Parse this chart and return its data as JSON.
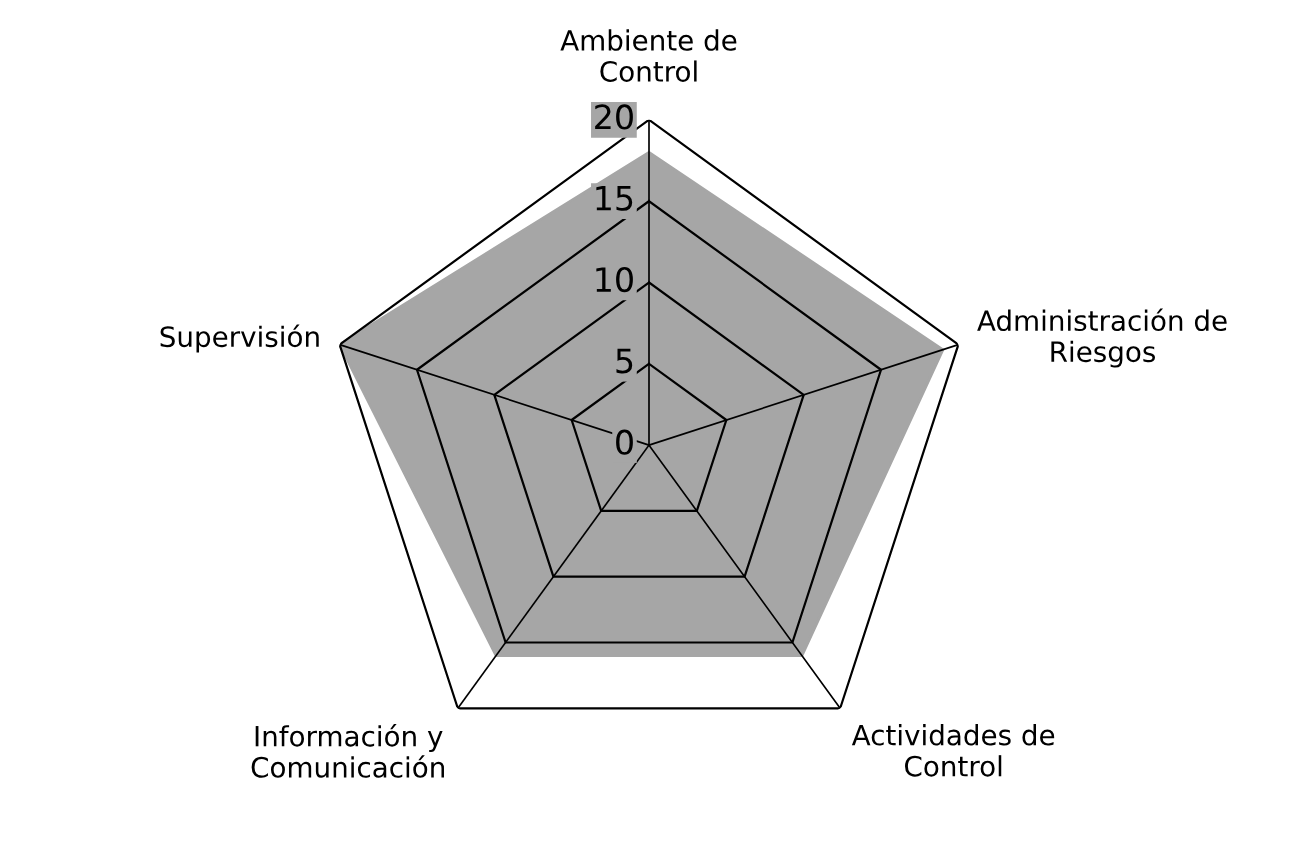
{
  "chart_data": {
    "type": "radar",
    "categories": [
      "Ambiente de\nControl",
      "Administración de\nRiesgos",
      "Actividades de\nControl",
      "Información y\nComunicación",
      "Supervisión"
    ],
    "series": [
      {
        "color": "#a6a6a6",
        "values": [
          18,
          19,
          16,
          16,
          20
        ]
      }
    ],
    "ylim": [
      0,
      20
    ],
    "yticks": [
      0,
      5,
      10,
      15,
      20
    ],
    "grid": true
  }
}
